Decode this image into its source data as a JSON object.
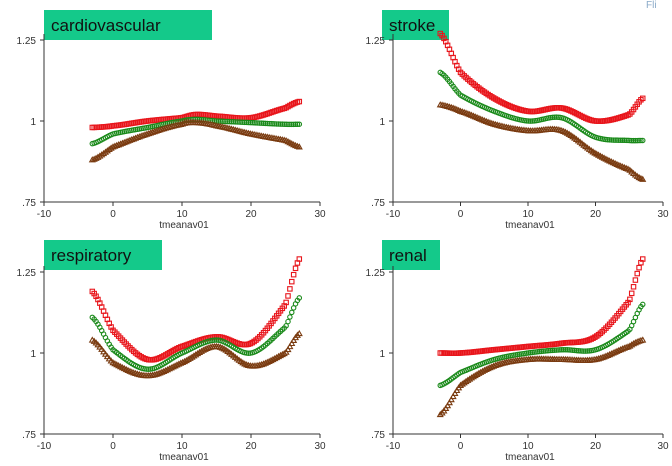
{
  "corner_text": "Fli",
  "colors": {
    "upper": "#e8151b",
    "middle": "#1a8a1a",
    "lower": "#7a3b10",
    "title_bg": "#14c98a",
    "axis": "#333333",
    "text": "#333333"
  },
  "chart_data": [
    {
      "type": "scatter",
      "title": "cardiovascular",
      "xlabel": "tmeanav01",
      "ylabel": "",
      "xlim": [
        -10,
        30
      ],
      "ylim": [
        0.75,
        1.25
      ],
      "xticks": [
        -10,
        0,
        10,
        20,
        30
      ],
      "yticks": [
        0.75,
        1,
        1.25
      ],
      "ytick_labels": [
        ".75",
        "1",
        "1.25"
      ],
      "grid": false,
      "series": [
        {
          "role": "upper",
          "marker": "square",
          "x": [
            -3,
            0,
            5,
            10,
            12,
            15,
            20,
            25,
            27
          ],
          "y": [
            0.98,
            0.985,
            1.0,
            1.01,
            1.02,
            1.015,
            1.01,
            1.04,
            1.06
          ]
        },
        {
          "role": "middle",
          "marker": "circle",
          "x": [
            -3,
            0,
            5,
            10,
            12,
            15,
            20,
            25,
            27
          ],
          "y": [
            0.93,
            0.96,
            0.98,
            1.0,
            1.005,
            1.0,
            0.995,
            0.99,
            0.99
          ]
        },
        {
          "role": "lower",
          "marker": "triangle",
          "x": [
            -3,
            0,
            5,
            10,
            12,
            15,
            20,
            25,
            27
          ],
          "y": [
            0.88,
            0.92,
            0.96,
            0.99,
            0.995,
            0.985,
            0.96,
            0.94,
            0.92
          ]
        }
      ]
    },
    {
      "type": "scatter",
      "title": "stroke",
      "xlabel": "tmeanav01",
      "ylabel": "",
      "xlim": [
        -10,
        30
      ],
      "ylim": [
        0.75,
        1.25
      ],
      "xticks": [
        -10,
        0,
        10,
        20,
        30
      ],
      "yticks": [
        0.75,
        1,
        1.25
      ],
      "ytick_labels": [
        ".75",
        "1",
        "1.25"
      ],
      "grid": false,
      "series": [
        {
          "role": "upper",
          "marker": "square",
          "x": [
            -3,
            0,
            5,
            10,
            15,
            20,
            25,
            27
          ],
          "y": [
            1.27,
            1.15,
            1.07,
            1.03,
            1.04,
            1.0,
            1.02,
            1.07
          ]
        },
        {
          "role": "middle",
          "marker": "circle",
          "x": [
            -3,
            0,
            5,
            10,
            15,
            20,
            25,
            27
          ],
          "y": [
            1.15,
            1.08,
            1.03,
            1.0,
            1.01,
            0.95,
            0.94,
            0.94
          ]
        },
        {
          "role": "lower",
          "marker": "triangle",
          "x": [
            -3,
            0,
            5,
            10,
            15,
            20,
            25,
            27
          ],
          "y": [
            1.05,
            1.03,
            0.99,
            0.97,
            0.97,
            0.9,
            0.85,
            0.82
          ]
        }
      ]
    },
    {
      "type": "scatter",
      "title": "respiratory",
      "xlabel": "tmeanav01",
      "ylabel": "",
      "xlim": [
        -10,
        30
      ],
      "ylim": [
        0.75,
        1.25
      ],
      "xticks": [
        -10,
        0,
        10,
        20,
        30
      ],
      "yticks": [
        0.75,
        1,
        1.25
      ],
      "ytick_labels": [
        ".75",
        "1",
        "1.25"
      ],
      "grid": false,
      "series": [
        {
          "role": "upper",
          "marker": "square",
          "x": [
            -3,
            0,
            5,
            10,
            15,
            20,
            25,
            27
          ],
          "y": [
            1.19,
            1.07,
            0.98,
            1.02,
            1.05,
            1.03,
            1.15,
            1.29
          ]
        },
        {
          "role": "middle",
          "marker": "circle",
          "x": [
            -3,
            0,
            5,
            10,
            15,
            20,
            25,
            27
          ],
          "y": [
            1.11,
            1.01,
            0.95,
            1.0,
            1.04,
            1.0,
            1.08,
            1.17
          ]
        },
        {
          "role": "lower",
          "marker": "triangle",
          "x": [
            -3,
            0,
            5,
            10,
            15,
            20,
            25,
            27
          ],
          "y": [
            1.04,
            0.97,
            0.93,
            0.97,
            1.02,
            0.96,
            1.0,
            1.06
          ]
        }
      ]
    },
    {
      "type": "scatter",
      "title": "renal",
      "xlabel": "tmeanav01",
      "ylabel": "",
      "xlim": [
        -10,
        30
      ],
      "ylim": [
        0.75,
        1.25
      ],
      "xticks": [
        -10,
        0,
        10,
        20,
        30
      ],
      "yticks": [
        0.75,
        1,
        1.25
      ],
      "ytick_labels": [
        ".75",
        "1",
        "1.25"
      ],
      "grid": false,
      "series": [
        {
          "role": "upper",
          "marker": "square",
          "x": [
            -3,
            0,
            5,
            10,
            15,
            20,
            25,
            27
          ],
          "y": [
            1.0,
            1.0,
            1.01,
            1.02,
            1.03,
            1.05,
            1.16,
            1.29
          ]
        },
        {
          "role": "middle",
          "marker": "circle",
          "x": [
            -3,
            0,
            5,
            10,
            15,
            20,
            25,
            27
          ],
          "y": [
            0.9,
            0.94,
            0.98,
            1.0,
            1.01,
            1.01,
            1.07,
            1.15
          ]
        },
        {
          "role": "lower",
          "marker": "triangle",
          "x": [
            -3,
            0,
            5,
            10,
            15,
            20,
            25,
            27
          ],
          "y": [
            0.81,
            0.9,
            0.96,
            0.98,
            0.98,
            0.98,
            1.02,
            1.04
          ]
        }
      ]
    }
  ]
}
